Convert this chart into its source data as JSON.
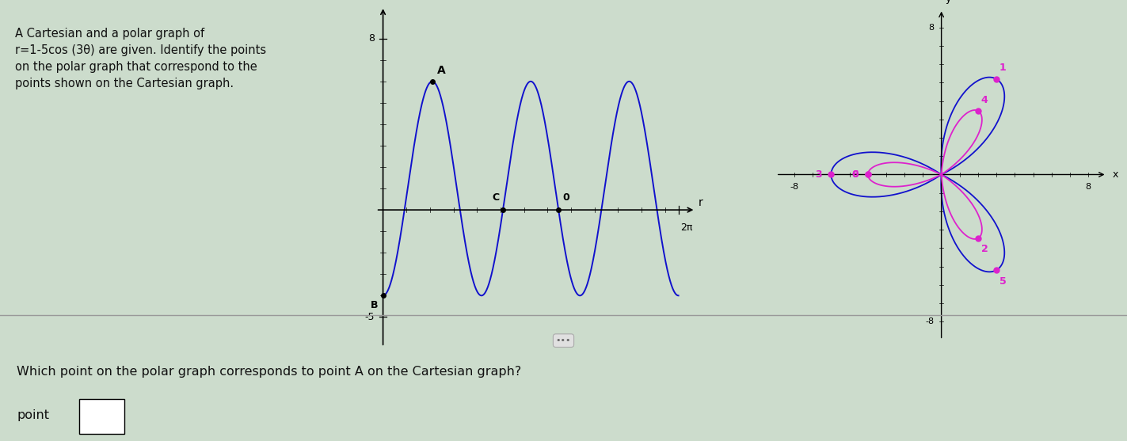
{
  "title_text": "A Cartesian and a polar graph of\nr=1-5cos (3θ) are given. Identify the points\non the polar graph that correspond to the\npoints shown on the Cartesian graph.",
  "question_text": "Which point on the polar graph corresponds to point A on the Cartesian graph?",
  "answer_label": "point",
  "bg_color": "#ccdccc",
  "text_color": "#111111",
  "curve_color": "#1111cc",
  "magenta_color": "#dd22cc",
  "dot_color": "#dd22cc",
  "teal_bar_color": "#008888",
  "divider_color": "#888888"
}
